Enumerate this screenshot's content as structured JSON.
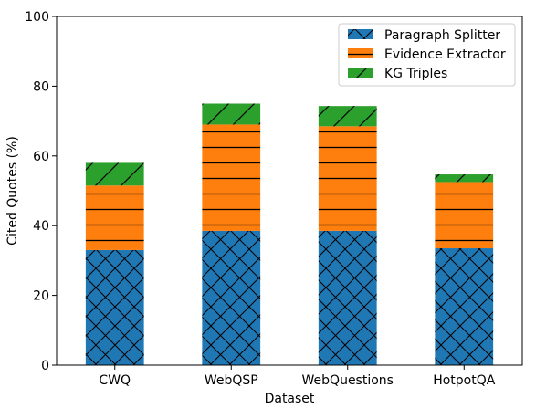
{
  "chart_data": {
    "type": "bar",
    "stacked": true,
    "xlabel": "Dataset",
    "ylabel": "Cited Quotes (%)",
    "ylim": [
      0,
      100
    ],
    "yticks": [
      0,
      20,
      40,
      60,
      80,
      100
    ],
    "categories": [
      "CWQ",
      "WebQSP",
      "WebQuestions",
      "HotpotQA"
    ],
    "series": [
      {
        "name": "Paragraph Splitter",
        "color": "#1f77b4",
        "hatch": "x",
        "values": [
          33.0,
          38.5,
          38.5,
          33.5
        ]
      },
      {
        "name": "Evidence Extractor",
        "color": "#ff7f0e",
        "hatch": "-",
        "values": [
          18.5,
          30.5,
          30.0,
          19.0
        ]
      },
      {
        "name": "KG Triples",
        "color": "#2ca02c",
        "hatch": "/",
        "values": [
          6.5,
          6.0,
          5.8,
          2.2
        ]
      }
    ],
    "legend_position": "top-right",
    "grid": false
  }
}
